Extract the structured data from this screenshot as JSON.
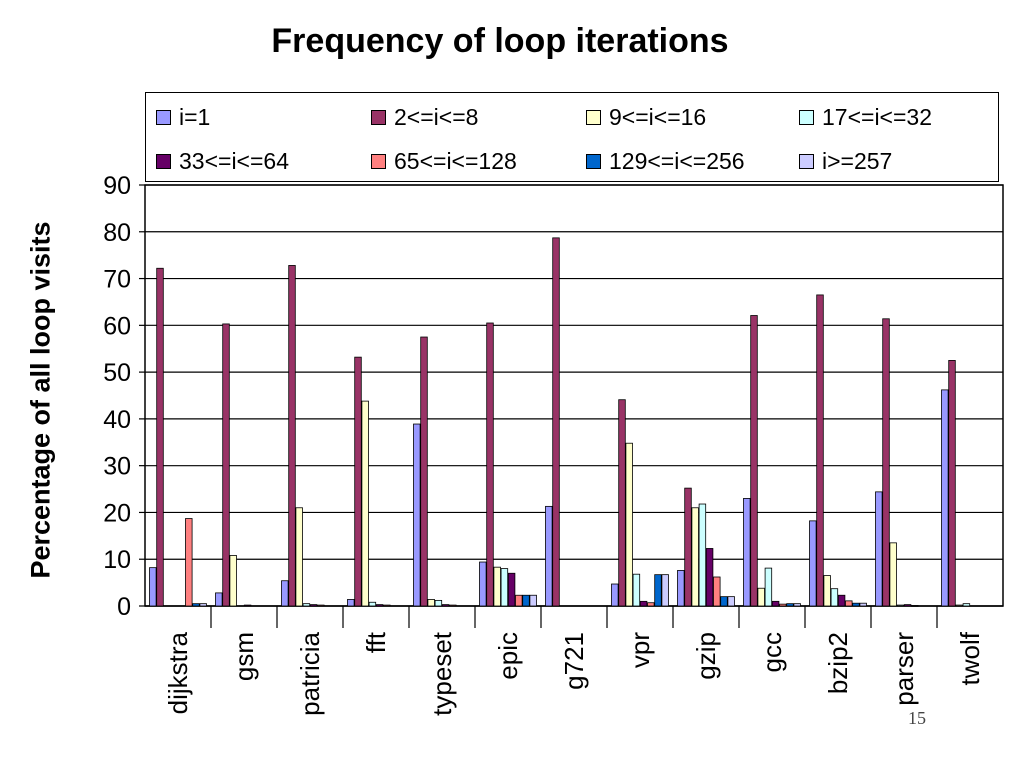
{
  "page_number": "15",
  "chart_data": {
    "type": "bar",
    "title": "Frequency of loop iterations",
    "ylabel": "Percentage of all loop visits",
    "xlabel": "",
    "ylim": [
      0,
      90
    ],
    "yticks": [
      0,
      10,
      20,
      30,
      40,
      50,
      60,
      70,
      80,
      90
    ],
    "grid": true,
    "legend_position": "top",
    "categories": [
      "dijkstra",
      "gsm",
      "patricia",
      "fft",
      "typeset",
      "epic",
      "g721",
      "vpr",
      "gzip",
      "gcc",
      "bzip2",
      "parser",
      "twolf"
    ],
    "series": [
      {
        "name": "i=1",
        "color": "#9999ff",
        "values": [
          8.2,
          2.8,
          5.4,
          1.4,
          38.9,
          9.4,
          21.3,
          4.7,
          7.6,
          23.0,
          18.2,
          24.4,
          46.2
        ]
      },
      {
        "name": "2<=i<=8",
        "color": "#993366",
        "values": [
          72.2,
          60.3,
          72.8,
          53.2,
          57.5,
          60.5,
          78.7,
          44.1,
          25.2,
          62.1,
          66.5,
          61.4,
          52.5
        ]
      },
      {
        "name": "9<=i<=16",
        "color": "#ffffcc",
        "values": [
          0.0,
          10.8,
          21.0,
          43.8,
          1.4,
          8.3,
          0.0,
          34.8,
          21.0,
          3.8,
          6.5,
          13.5,
          0.2
        ]
      },
      {
        "name": "17<=i<=32",
        "color": "#ccffff",
        "values": [
          0.0,
          0.0,
          0.5,
          0.8,
          1.2,
          8.0,
          0.0,
          6.8,
          21.8,
          8.1,
          3.7,
          0.2,
          0.5
        ]
      },
      {
        "name": "33<=i<=64",
        "color": "#660066",
        "values": [
          0.0,
          0.2,
          0.3,
          0.3,
          0.3,
          7.0,
          0.0,
          1.0,
          12.3,
          1.0,
          2.3,
          0.3,
          0.0
        ]
      },
      {
        "name": "65<=i<=128",
        "color": "#ff8080",
        "values": [
          18.7,
          0.0,
          0.2,
          0.2,
          0.2,
          2.3,
          0.0,
          0.7,
          6.2,
          0.4,
          1.1,
          0.1,
          0.0
        ]
      },
      {
        "name": "129<=i<=256",
        "color": "#0066cc",
        "values": [
          0.5,
          0.0,
          0.0,
          0.0,
          0.0,
          2.3,
          0.0,
          6.7,
          2.0,
          0.5,
          0.6,
          0.0,
          0.0
        ]
      },
      {
        "name": "i>=257",
        "color": "#ccccff",
        "values": [
          0.5,
          0.0,
          0.0,
          0.0,
          0.0,
          2.3,
          0.0,
          6.7,
          2.0,
          0.5,
          0.6,
          0.0,
          0.0
        ]
      }
    ]
  }
}
